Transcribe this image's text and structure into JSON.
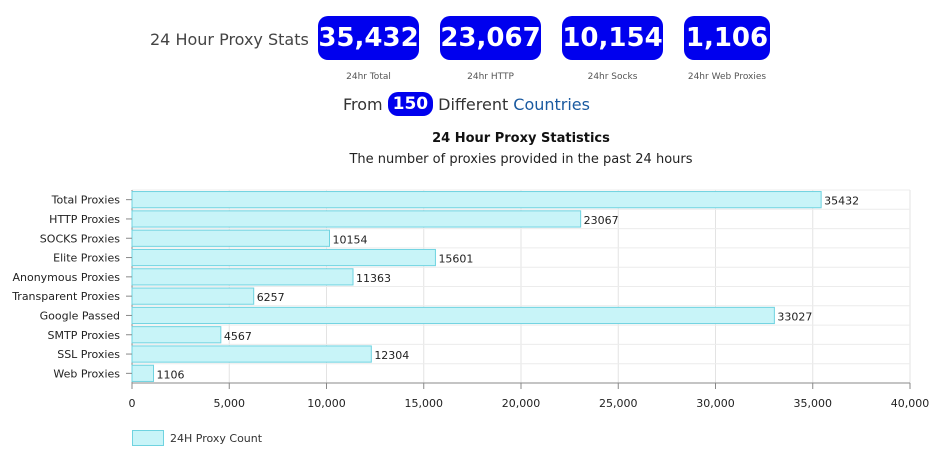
{
  "header": {
    "stats_label": "24 Hour Proxy Stats",
    "stats": [
      {
        "value": "35,432",
        "caption": "24hr Total"
      },
      {
        "value": "23,067",
        "caption": "24hr HTTP"
      },
      {
        "value": "10,154",
        "caption": "24hr Socks"
      },
      {
        "value": "1,106",
        "caption": "24hr Web Proxies"
      }
    ],
    "countries_prefix": "From",
    "countries_count": "150",
    "countries_middle": "Different",
    "countries_link": "Countries"
  },
  "colors": {
    "badge": "#0000ee",
    "bar_fill": "#c8f4f8",
    "bar_stroke": "#6fd3e0"
  },
  "chart_data": {
    "type": "bar",
    "orientation": "horizontal",
    "title": "24 Hour Proxy Statistics",
    "subtitle": "The number of proxies provided in the past 24 hours",
    "categories": [
      "Total Proxies",
      "HTTP Proxies",
      "SOCKS Proxies",
      "Elite Proxies",
      "Anonymous Proxies",
      "Transparent Proxies",
      "Google Passed",
      "SMTP Proxies",
      "SSL Proxies",
      "Web Proxies"
    ],
    "series": [
      {
        "name": "24H Proxy Count",
        "values": [
          35432,
          23067,
          10154,
          15601,
          11363,
          6257,
          33027,
          4567,
          12304,
          1106
        ]
      }
    ],
    "xlim": [
      0,
      40000
    ],
    "xticks": [
      0,
      5000,
      10000,
      15000,
      20000,
      25000,
      30000,
      35000,
      40000
    ],
    "xtick_labels": [
      "0",
      "5,000",
      "10,000",
      "15,000",
      "20,000",
      "25,000",
      "30,000",
      "35,000",
      "40,000"
    ],
    "grid": true,
    "legend": "bottom-left",
    "data_labels": true
  }
}
